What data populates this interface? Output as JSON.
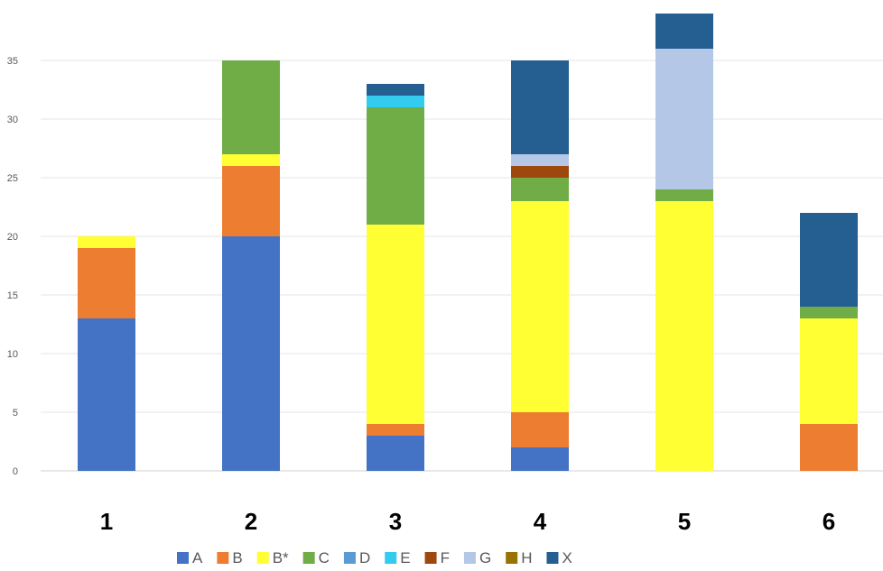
{
  "chart_data": {
    "type": "bar",
    "stacked": true,
    "categories": [
      "1",
      "2",
      "3",
      "4",
      "5",
      "6"
    ],
    "ylim": [
      0,
      39
    ],
    "yticks": [
      0,
      5,
      10,
      15,
      20,
      25,
      30,
      35
    ],
    "grid": true,
    "legend_position": "bottom",
    "series": [
      {
        "name": "A",
        "color": "#4472C4",
        "values": [
          13,
          20,
          3,
          2,
          0,
          0
        ]
      },
      {
        "name": "B",
        "color": "#ED7D31",
        "values": [
          6,
          6,
          1,
          3,
          0,
          4
        ]
      },
      {
        "name": "B*",
        "color": "#FFFF33",
        "values": [
          1,
          1,
          17,
          18,
          23,
          9
        ]
      },
      {
        "name": "C",
        "color": "#70AD47",
        "values": [
          0,
          8,
          10,
          2,
          1,
          1
        ]
      },
      {
        "name": "D",
        "color": "#5B9BD5",
        "values": [
          0,
          0,
          0,
          0,
          0,
          0
        ]
      },
      {
        "name": "E",
        "color": "#33CCEE",
        "values": [
          0,
          0,
          1,
          0,
          0,
          0
        ]
      },
      {
        "name": "F",
        "color": "#9E480E",
        "values": [
          0,
          0,
          0,
          1,
          0,
          0
        ]
      },
      {
        "name": "G",
        "color": "#B4C7E7",
        "values": [
          0,
          0,
          0,
          1,
          12,
          0
        ]
      },
      {
        "name": "H",
        "color": "#997300",
        "values": [
          0,
          0,
          0,
          0,
          0,
          0
        ]
      },
      {
        "name": "X",
        "color": "#255E91",
        "values": [
          0,
          0,
          1,
          8,
          3,
          8
        ]
      }
    ]
  }
}
